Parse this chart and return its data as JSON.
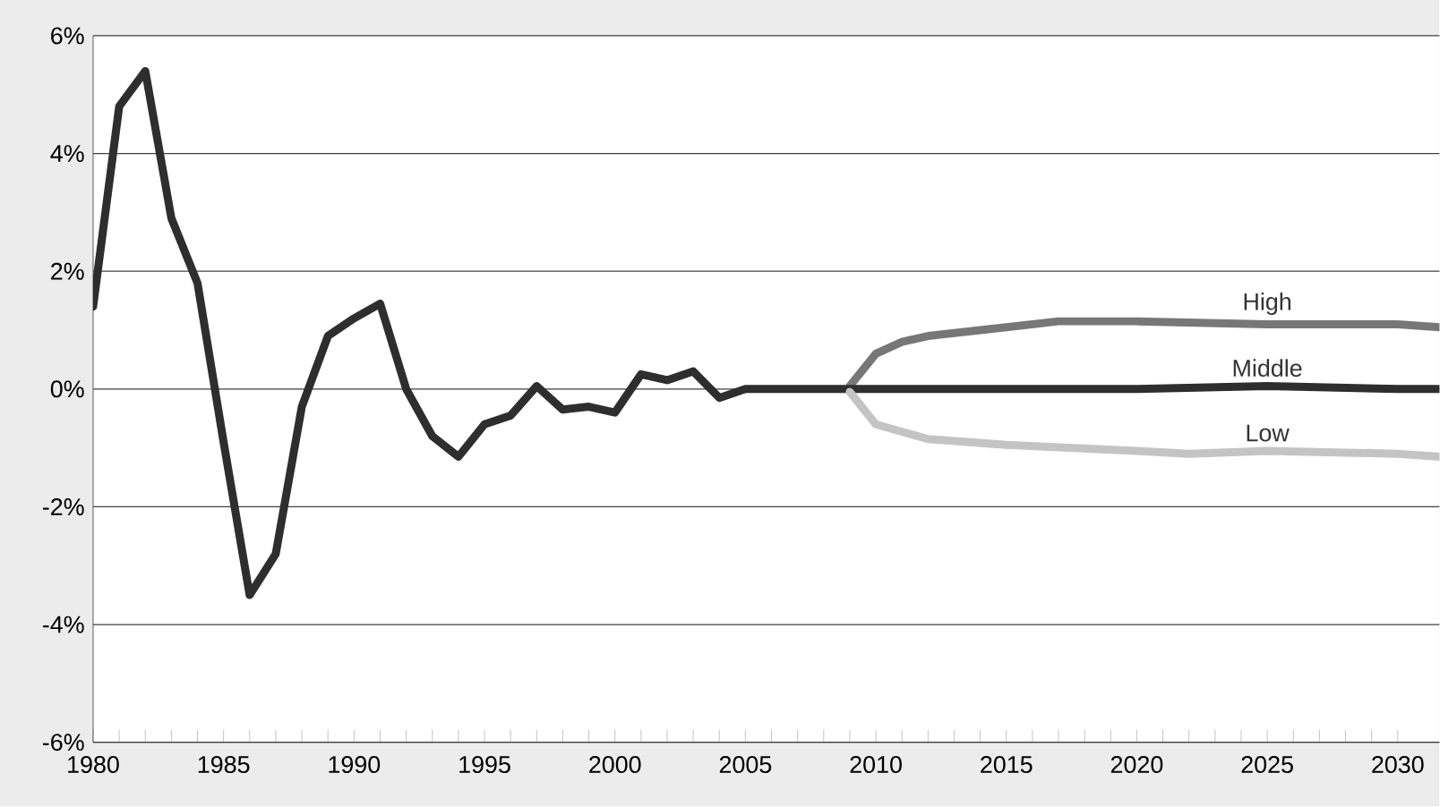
{
  "chart_data": {
    "type": "line",
    "xlim": [
      1980,
      2031.6
    ],
    "ylim": [
      -6,
      6
    ],
    "xticks": [
      1980,
      1985,
      1990,
      1995,
      2000,
      2005,
      2010,
      2015,
      2020,
      2025,
      2030
    ],
    "yticks": [
      {
        "value": 6,
        "label": "6%"
      },
      {
        "value": 4,
        "label": "4%"
      },
      {
        "value": 2,
        "label": "2%"
      },
      {
        "value": 0,
        "label": "0%"
      },
      {
        "value": -2,
        "label": "-2%"
      },
      {
        "value": -4,
        "label": "-4%"
      },
      {
        "value": -6,
        "label": "-6%"
      }
    ],
    "grid": "y",
    "marker": "none",
    "line_style": "solid",
    "series": [
      {
        "name": "High",
        "color": "#777777",
        "x": [
          2009,
          2010,
          2011,
          2012,
          2013,
          2015,
          2017,
          2020,
          2025,
          2030,
          2031.6
        ],
        "values": [
          0.05,
          0.6,
          0.8,
          0.9,
          0.95,
          1.05,
          1.15,
          1.15,
          1.1,
          1.1,
          1.05
        ]
      },
      {
        "name": "Middle",
        "color": "#2e2e2e",
        "x": [
          1980,
          1981,
          1982,
          1983,
          1984,
          1985,
          1986,
          1987,
          1988,
          1989,
          1990,
          1991,
          1992,
          1993,
          1994,
          1995,
          1996,
          1997,
          1998,
          1999,
          2000,
          2001,
          2002,
          2003,
          2004,
          2005,
          2010,
          2015,
          2020,
          2025,
          2030,
          2031.6
        ],
        "values": [
          1.4,
          4.8,
          5.4,
          2.9,
          1.8,
          -0.9,
          -3.5,
          -2.8,
          -0.3,
          0.9,
          1.2,
          1.45,
          0,
          -0.8,
          -1.15,
          -0.6,
          -0.45,
          0.05,
          -0.35,
          -0.3,
          -0.4,
          0.25,
          0.15,
          0.3,
          -0.15,
          0,
          0,
          0,
          0,
          0.05,
          0,
          0
        ]
      },
      {
        "name": "Low",
        "color": "#c4c4c4",
        "x": [
          2009,
          2010,
          2012,
          2015,
          2020,
          2022,
          2025,
          2030,
          2031.6
        ],
        "values": [
          -0.05,
          -0.6,
          -0.85,
          -0.95,
          -1.05,
          -1.1,
          -1.05,
          -1.1,
          -1.15
        ]
      }
    ]
  }
}
